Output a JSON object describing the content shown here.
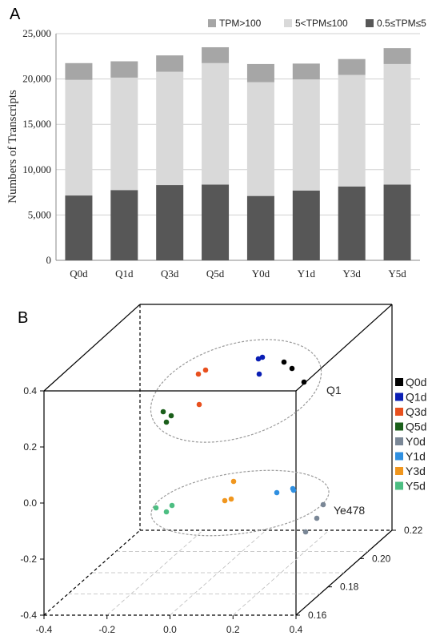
{
  "chart_data": [
    {
      "panel": "A",
      "type": "bar",
      "stacked": true,
      "categories": [
        "Q0d",
        "Q1d",
        "Q3d",
        "Q5d",
        "Y0d",
        "Y1d",
        "Y3d",
        "Y5d"
      ],
      "series": [
        {
          "name": "0.5≤TPM≤5",
          "color": "#575757",
          "values": [
            7150,
            7750,
            8300,
            8350,
            7100,
            7700,
            8150,
            8350
          ]
        },
        {
          "name": "5<TPM≤100",
          "color": "#d9d9d9",
          "values": [
            12750,
            12400,
            12500,
            13400,
            12550,
            12250,
            12300,
            13300
          ]
        },
        {
          "name": "TPM>100",
          "color": "#a6a6a6",
          "values": [
            1850,
            1800,
            1800,
            1750,
            2000,
            1750,
            1750,
            1750
          ]
        }
      ],
      "ylabel": "Numbers of Transcripts",
      "ylim": [
        0,
        25000
      ],
      "yticks": [
        "0",
        "5,000",
        "10,000",
        "15,000",
        "20,000",
        "25,000"
      ],
      "grid": true,
      "legend_position": "top"
    },
    {
      "panel": "B",
      "type": "scatter",
      "dimensions": 3,
      "x_ticks": [
        "-0.4",
        "-0.2",
        "0.0",
        "0.2",
        "0.4"
      ],
      "y_ticks": [
        "-0.4",
        "-0.2",
        "0.0",
        "0.2",
        "0.4"
      ],
      "z_ticks": [
        "0.16",
        "0.18",
        "0.20",
        "0.22"
      ],
      "groups": [
        {
          "name": "Q0d",
          "color": "#000000"
        },
        {
          "name": "Q1d",
          "color": "#0a1eb4"
        },
        {
          "name": "Q3d",
          "color": "#e8501e"
        },
        {
          "name": "Q5d",
          "color": "#1a5e1a"
        },
        {
          "name": "Y0d",
          "color": "#7a8796"
        },
        {
          "name": "Y1d",
          "color": "#2f8fe0"
        },
        {
          "name": "Y3d",
          "color": "#f0961e"
        },
        {
          "name": "Y5d",
          "color": "#4dbe82"
        }
      ],
      "clusters": [
        {
          "label": "Q1"
        },
        {
          "label": "Ye478"
        }
      ],
      "legend_position": "right"
    }
  ]
}
